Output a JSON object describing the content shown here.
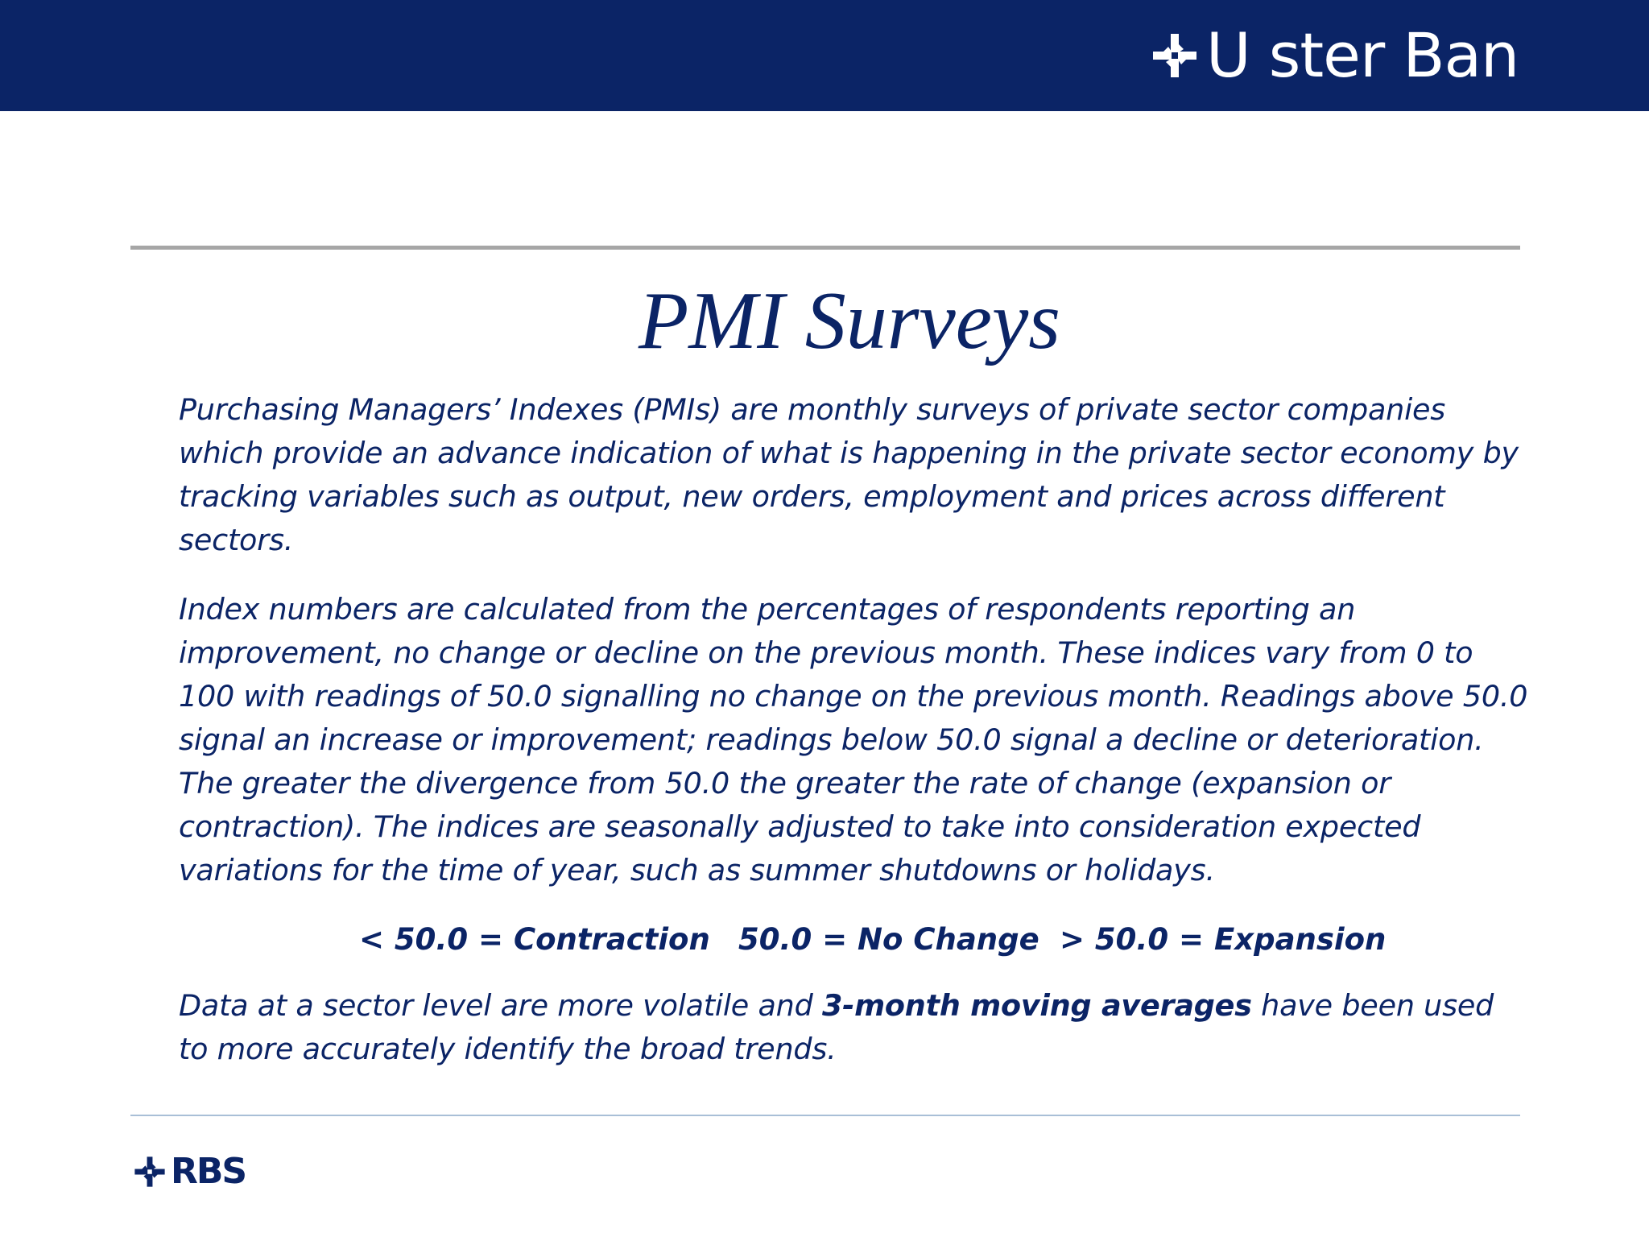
{
  "header": {
    "brand_name": "U ster Ban",
    "logo_icon": "daisy-wheel-icon",
    "band_color": "#0b2466"
  },
  "title": "PMI Surveys",
  "intro_paragraph": "Purchasing Managers’ Indexes (PMIs) are monthly surveys of private sector companies which provide an advance indication of what is happening in the private sector economy by tracking variables such as output, new orders, employment and prices across different sectors.",
  "method_paragraph": "Index numbers are calculated from the percentages of respondents reporting an improvement, no change or decline on the previous month.  These indices vary from 0 to 100 with readings of 50.0 signalling no change on the previous month. Readings above 50.0 signal an increase or improvement; readings below 50.0 signal a decline or deterioration.  The greater the divergence from 50.0 the greater the rate of change (expansion or contraction).  The indices are seasonally adjusted to take into consideration expected variations for the time of year, such as summer shutdowns or holidays.",
  "legend": {
    "contraction": "< 50.0 = Contraction",
    "no_change": "50.0 = No Change",
    "expansion": "> 50.0 = Expansion"
  },
  "closing_paragraph": {
    "before": "Data at a sector level are more volatile and ",
    "emphasis": "3-month moving averages",
    "after": " have been used to more accurately identify the broad trends."
  },
  "footer": {
    "brand_name": "RBS",
    "logo_icon": "daisy-wheel-icon"
  },
  "colors": {
    "text": "#0b2466",
    "top_rule": "#a6a6a6",
    "bottom_rule": "#a9bfd7"
  }
}
